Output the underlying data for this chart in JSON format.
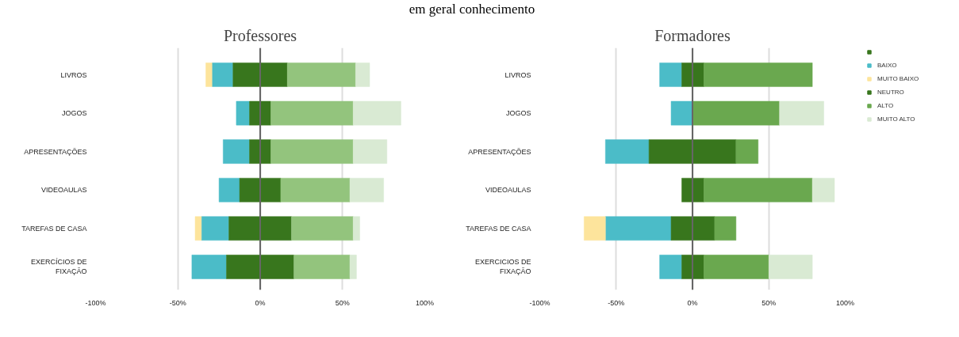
{
  "chart_data": [
    {
      "type": "bar",
      "orientation": "horizontal",
      "title": "Professores",
      "annotations": [
        "em geral conhecimento"
      ],
      "categories": [
        "LIVROS",
        "JOGOS",
        "APRESENTAÇÕES",
        "VIDEOAULAS",
        "TAREFAS DE CASA",
        "EXERCÍCIOS DE FIXAÇÃO"
      ],
      "series": [
        {
          "color": "#fde49c",
          "base": [
            -33,
            null,
            null,
            null,
            -39.5,
            null
          ],
          "values": [
            4,
            null,
            null,
            null,
            4,
            null
          ]
        },
        {
          "color": "#4bbcc8",
          "base": [
            -29,
            -14.5,
            -22.5,
            -25,
            -35.5,
            -41.5
          ],
          "values": [
            12.5,
            8,
            16,
            12.5,
            16.5,
            21
          ]
        },
        {
          "color": "#38761d",
          "base": [
            -16.5,
            -6.5,
            -6.5,
            -12.5,
            -19,
            -20.5
          ],
          "values": [
            33,
            13,
            13,
            25,
            38,
            41
          ]
        },
        {
          "color": "#93c47d",
          "base": [
            16.5,
            6.5,
            6.5,
            12.5,
            19,
            20.5
          ],
          "values": [
            41.5,
            50,
            50,
            42,
            37.5,
            34
          ]
        },
        {
          "color": "#d9ead3",
          "base": [
            58,
            56.5,
            56.5,
            54.5,
            56.5,
            54.5
          ],
          "values": [
            8.5,
            29,
            20.5,
            20.5,
            4,
            4
          ]
        }
      ],
      "xlim": [
        -100,
        100
      ],
      "xticks": [
        {
          "value": -100,
          "label": "-100%"
        },
        {
          "value": -50,
          "label": "-50%"
        },
        {
          "value": 0,
          "label": "0%"
        },
        {
          "value": 50,
          "label": "50%"
        },
        {
          "value": 100,
          "label": "100%"
        }
      ],
      "grid": "x",
      "legend": false,
      "ref_lines": [
        {
          "axis": "x",
          "value": 0,
          "color": "#666666"
        }
      ]
    },
    {
      "type": "bar",
      "orientation": "horizontal",
      "title": "Formadores",
      "categories": [
        "LIVROS",
        "JOGOS",
        "APRESENTAÇÕES",
        "VIDEOAULAS",
        "TAREFAS DE CASA",
        "EXERCICIOS DE FIXAÇÃO"
      ],
      "series": [
        {
          "color": "#38761d",
          "base": [
            null,
            null,
            null,
            null,
            null,
            null
          ],
          "values": [
            null,
            null,
            null,
            null,
            null,
            null
          ]
        },
        {
          "name": "BAIXO",
          "color": "#4bbcc8",
          "base": [
            -21.5,
            -14,
            -57,
            null,
            -57,
            -21.5
          ],
          "values": [
            14.5,
            14,
            28.5,
            null,
            43,
            14.5
          ]
        },
        {
          "name": "MUITO BAIXO",
          "color": "#fde49c",
          "base": [
            null,
            null,
            null,
            null,
            -71,
            null
          ],
          "values": [
            null,
            null,
            null,
            null,
            14,
            null
          ]
        },
        {
          "name": "NEUTRO",
          "color": "#38761d",
          "base": [
            -7,
            null,
            -28.5,
            -7,
            -14,
            -7
          ],
          "values": [
            14.5,
            null,
            57,
            14.5,
            28.5,
            14.5
          ]
        },
        {
          "name": "ALTO",
          "color": "#6aa84f",
          "base": [
            7.5,
            0,
            28.5,
            7.5,
            14.5,
            7.5
          ],
          "values": [
            71,
            57,
            14.5,
            71,
            14,
            42.5
          ]
        },
        {
          "name": "MUITO ALTO",
          "color": "#d9ead3",
          "base": [
            null,
            57,
            null,
            78.5,
            null,
            50
          ],
          "values": [
            null,
            29,
            null,
            14.5,
            null,
            28.5
          ]
        }
      ],
      "xlim": [
        -100,
        100
      ],
      "xticks": [
        {
          "value": -100,
          "label": "-100%"
        },
        {
          "value": -50,
          "label": "-50%"
        },
        {
          "value": 0,
          "label": "0%"
        },
        {
          "value": 50,
          "label": "50%"
        },
        {
          "value": 100,
          "label": "100%"
        }
      ],
      "grid": "x",
      "legend": "right",
      "ref_lines": [
        {
          "axis": "x",
          "value": 0,
          "color": "#666666"
        }
      ]
    }
  ]
}
